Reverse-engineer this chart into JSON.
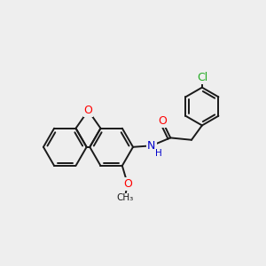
{
  "background_color": "#eeeeee",
  "bond_color": "#1a1a1a",
  "bond_width": 1.4,
  "figsize": [
    3.0,
    3.0
  ],
  "dpi": 100,
  "atom_colors": {
    "O": "#ff0000",
    "N": "#0000cc",
    "Cl": "#22aa22",
    "C": "#1a1a1a",
    "H": "#1a1a1a"
  },
  "font_size": 9.0,
  "font_size_small": 7.5
}
